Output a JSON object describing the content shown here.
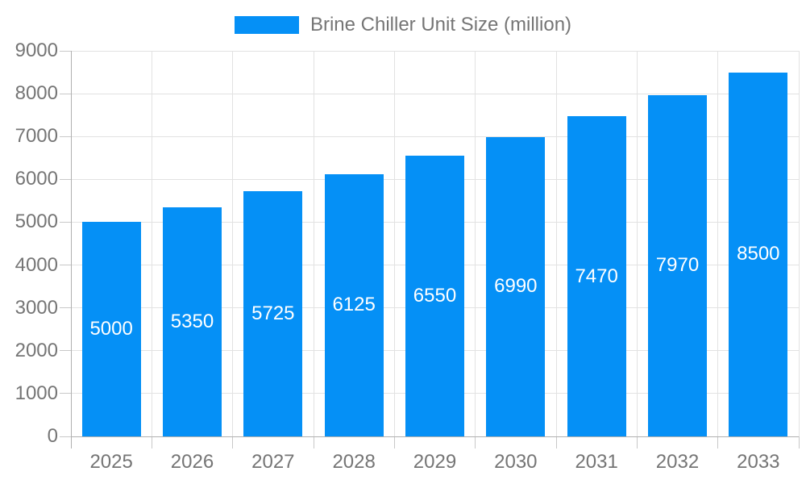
{
  "legend": {
    "label": "Brine Chiller Unit Size (million)"
  },
  "colors": {
    "bar": "#0590f6",
    "grid": "#e2e2e2",
    "axis": "#b0b0b0",
    "tick": "#c8c8c8",
    "label_text": "#757575",
    "bar_label_text": "#ffffff"
  },
  "chart_data": {
    "type": "bar",
    "title": "Brine Chiller Unit Size (million)",
    "series_name": "Brine Chiller Unit Size (million)",
    "categories": [
      "2025",
      "2026",
      "2027",
      "2028",
      "2029",
      "2030",
      "2031",
      "2032",
      "2033"
    ],
    "values": [
      5000,
      5350,
      5725,
      6125,
      6550,
      6990,
      7470,
      7970,
      8500
    ],
    "xlabel": "",
    "ylabel": "",
    "ylim": [
      0,
      9000
    ],
    "yticks": [
      0,
      1000,
      2000,
      3000,
      4000,
      5000,
      6000,
      7000,
      8000,
      9000
    ],
    "grid": true,
    "legend_position": "top",
    "value_labels": "inside-middle"
  }
}
